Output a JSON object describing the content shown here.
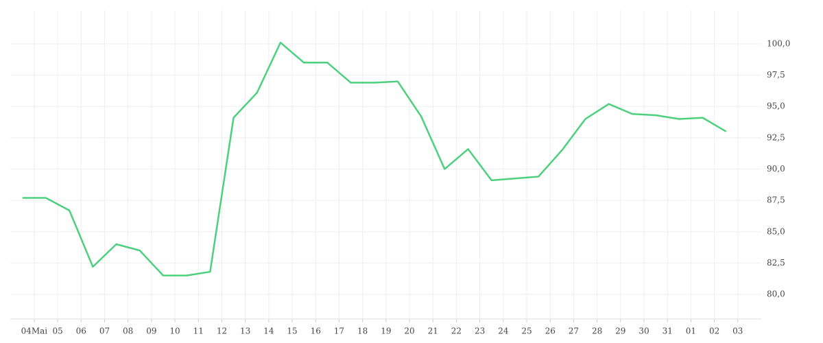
{
  "chart_data": {
    "type": "line",
    "x": [
      -0.5,
      0.5,
      1.5,
      2.5,
      3.5,
      4.5,
      5.5,
      6.5,
      7.5,
      8.5,
      9.5,
      10.5,
      11.5,
      12.5,
      13.5,
      14.5,
      15.5,
      16.5,
      17.5,
      18.5,
      19.5,
      20.5,
      21.5,
      22.5,
      23.5,
      24.5,
      25.5,
      26.5,
      27.5,
      28.5,
      29.5
    ],
    "series": [
      {
        "color": "#4cd07d",
        "values": [
          87.7,
          87.7,
          86.7,
          82.2,
          84.0,
          83.5,
          81.5,
          81.5,
          81.8,
          94.1,
          96.1,
          100.1,
          98.5,
          98.5,
          96.9,
          96.9,
          97.0,
          94.2,
          90.0,
          91.6,
          89.1,
          89.25,
          89.4,
          91.5,
          94.0,
          95.2,
          94.4,
          94.3,
          94.0,
          94.1,
          93.0
        ]
      }
    ],
    "xlim": [
      -1.02,
      31
    ],
    "xticks": [
      {
        "value": 0,
        "label": "04Mai"
      },
      {
        "value": 1,
        "label": "05"
      },
      {
        "value": 2,
        "label": "06"
      },
      {
        "value": 3,
        "label": "07"
      },
      {
        "value": 4,
        "label": "08"
      },
      {
        "value": 5,
        "label": "09"
      },
      {
        "value": 6,
        "label": "10"
      },
      {
        "value": 7,
        "label": "11"
      },
      {
        "value": 8,
        "label": "12"
      },
      {
        "value": 9,
        "label": "13"
      },
      {
        "value": 10,
        "label": "14"
      },
      {
        "value": 11,
        "label": "15"
      },
      {
        "value": 12,
        "label": "16"
      },
      {
        "value": 13,
        "label": "17"
      },
      {
        "value": 14,
        "label": "18"
      },
      {
        "value": 15,
        "label": "19"
      },
      {
        "value": 16,
        "label": "20"
      },
      {
        "value": 17,
        "label": "21"
      },
      {
        "value": 18,
        "label": "22"
      },
      {
        "value": 19,
        "label": "23"
      },
      {
        "value": 20,
        "label": "24"
      },
      {
        "value": 21,
        "label": "25"
      },
      {
        "value": 22,
        "label": "26"
      },
      {
        "value": 23,
        "label": "27"
      },
      {
        "value": 24,
        "label": "28"
      },
      {
        "value": 25,
        "label": "29"
      },
      {
        "value": 26,
        "label": "30"
      },
      {
        "value": 27,
        "label": "31"
      },
      {
        "value": 28,
        "label": "01"
      },
      {
        "value": 29,
        "label": "02"
      },
      {
        "value": 30,
        "label": "03"
      }
    ],
    "ylim": [
      78.03,
      102.68
    ],
    "yticks": [
      {
        "value": 80,
        "label": "80,0"
      },
      {
        "value": 82.5,
        "label": "82,5"
      },
      {
        "value": 85,
        "label": "85,0"
      },
      {
        "value": 87.5,
        "label": "87,5"
      },
      {
        "value": 90,
        "label": "90,0"
      },
      {
        "value": 92.5,
        "label": "92,5"
      },
      {
        "value": 95,
        "label": "95,0"
      },
      {
        "value": 97.5,
        "label": "97,5"
      },
      {
        "value": 100,
        "label": "100,0"
      }
    ],
    "grid": true
  }
}
